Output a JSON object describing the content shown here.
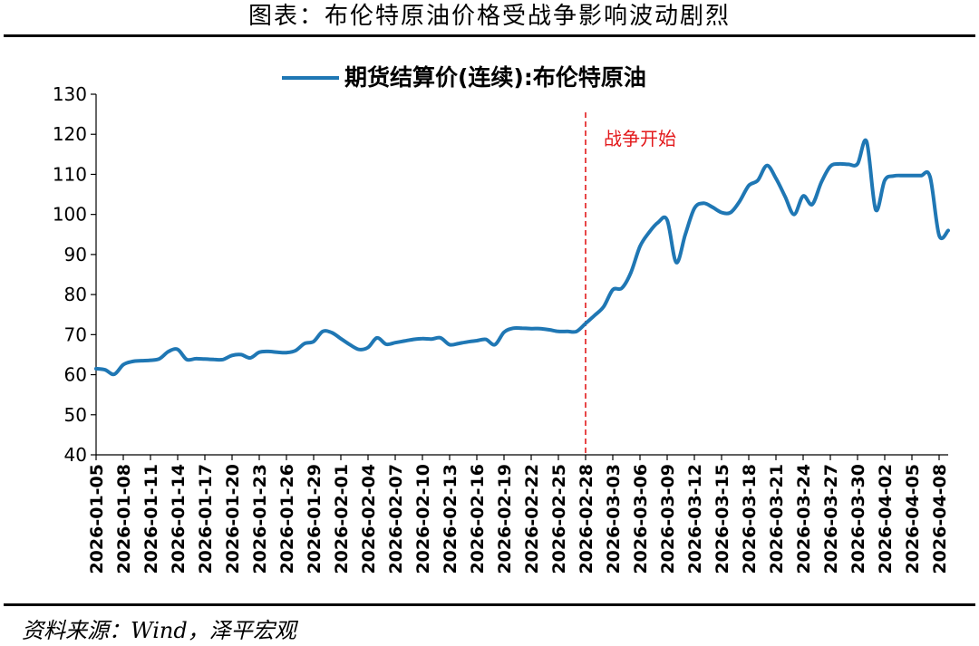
{
  "header": {
    "title": "图表：布伦特原油价格受战争影响波动剧烈"
  },
  "footer": {
    "source": "资料来源：Wind，泽平宏观"
  },
  "colors": {
    "series": "#1f77b4",
    "annotation": "#e31a1c",
    "axis": "#000000"
  },
  "chart_data": {
    "type": "line",
    "title": "",
    "xlabel": "",
    "ylabel": "",
    "ylim": [
      40,
      130
    ],
    "yticks": [
      40,
      50,
      60,
      70,
      80,
      90,
      100,
      110,
      120,
      130
    ],
    "xticks": [
      "2026-01-05",
      "2026-01-08",
      "2026-01-11",
      "2026-01-14",
      "2026-01-17",
      "2026-01-20",
      "2026-01-23",
      "2026-01-26",
      "2026-01-29",
      "2026-02-01",
      "2026-02-04",
      "2026-02-07",
      "2026-02-10",
      "2026-02-13",
      "2026-02-16",
      "2026-02-19",
      "2026-02-22",
      "2026-02-25",
      "2026-02-28",
      "2026-03-03",
      "2026-03-06",
      "2026-03-09",
      "2026-03-12",
      "2026-03-15",
      "2026-03-18",
      "2026-03-21",
      "2026-03-24",
      "2026-03-27",
      "2026-03-30",
      "2026-04-02",
      "2026-04-05",
      "2026-04-08"
    ],
    "grid": false,
    "legend": "top-center",
    "annotation": {
      "x": "2026-02-28",
      "label": "战争开始"
    },
    "series": [
      {
        "name": "期货结算价(连续):布伦特原油",
        "x": [
          "2026-01-05",
          "2026-01-06",
          "2026-01-07",
          "2026-01-08",
          "2026-01-09",
          "2026-01-10",
          "2026-01-11",
          "2026-01-12",
          "2026-01-13",
          "2026-01-14",
          "2026-01-15",
          "2026-01-16",
          "2026-01-17",
          "2026-01-18",
          "2026-01-19",
          "2026-01-20",
          "2026-01-21",
          "2026-01-22",
          "2026-01-23",
          "2026-01-24",
          "2026-01-25",
          "2026-01-26",
          "2026-01-27",
          "2026-01-28",
          "2026-01-29",
          "2026-01-30",
          "2026-01-31",
          "2026-02-01",
          "2026-02-02",
          "2026-02-03",
          "2026-02-04",
          "2026-02-05",
          "2026-02-06",
          "2026-02-07",
          "2026-02-08",
          "2026-02-09",
          "2026-02-10",
          "2026-02-11",
          "2026-02-12",
          "2026-02-13",
          "2026-02-14",
          "2026-02-15",
          "2026-02-16",
          "2026-02-17",
          "2026-02-18",
          "2026-02-19",
          "2026-02-20",
          "2026-02-21",
          "2026-02-22",
          "2026-02-23",
          "2026-02-24",
          "2026-02-25",
          "2026-02-26",
          "2026-02-27",
          "2026-02-28",
          "2026-03-01",
          "2026-03-02",
          "2026-03-03",
          "2026-03-04",
          "2026-03-05",
          "2026-03-06",
          "2026-03-07",
          "2026-03-08",
          "2026-03-09",
          "2026-03-10",
          "2026-03-11",
          "2026-03-12",
          "2026-03-13",
          "2026-03-14",
          "2026-03-15",
          "2026-03-16",
          "2026-03-17",
          "2026-03-18",
          "2026-03-19",
          "2026-03-20",
          "2026-03-21",
          "2026-03-22",
          "2026-03-23",
          "2026-03-24",
          "2026-03-25",
          "2026-03-26",
          "2026-03-27",
          "2026-03-28",
          "2026-03-29",
          "2026-03-30",
          "2026-03-31",
          "2026-04-01",
          "2026-04-02",
          "2026-04-03",
          "2026-04-04",
          "2026-04-05",
          "2026-04-06",
          "2026-04-07",
          "2026-04-08",
          "2026-04-09"
        ],
        "values": [
          61.5,
          61.2,
          60.1,
          62.5,
          63.3,
          63.5,
          63.6,
          64.0,
          65.8,
          66.3,
          63.8,
          64.0,
          63.9,
          63.8,
          63.8,
          64.8,
          65.0,
          64.2,
          65.6,
          65.8,
          65.6,
          65.5,
          66.0,
          67.8,
          68.3,
          70.8,
          70.5,
          69.0,
          67.5,
          66.3,
          66.8,
          69.2,
          67.6,
          68.0,
          68.4,
          68.8,
          69.0,
          68.9,
          69.2,
          67.5,
          67.8,
          68.2,
          68.5,
          68.8,
          67.5,
          70.6,
          71.6,
          71.6,
          71.5,
          71.5,
          71.2,
          70.8,
          70.8,
          70.8,
          72.8,
          74.8,
          77.0,
          81.2,
          81.6,
          85.5,
          92.0,
          95.5,
          98.0,
          98.6,
          88.0,
          95.0,
          101.5,
          102.8,
          101.8,
          100.5,
          100.5,
          103.3,
          107.2,
          108.5,
          112.2,
          109.0,
          104.5,
          100.0,
          104.6,
          102.5,
          108.0,
          112.0,
          112.6,
          112.5,
          112.6,
          118.2,
          101.2,
          108.5,
          109.6,
          109.7,
          109.7,
          109.7,
          109.4,
          94.8,
          96.0
        ]
      }
    ]
  }
}
